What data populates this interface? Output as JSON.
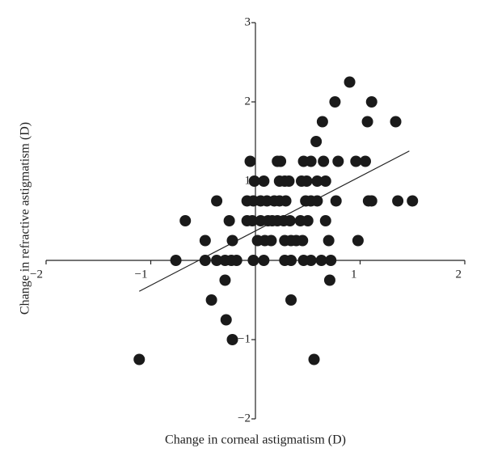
{
  "chart_data": {
    "type": "scatter",
    "x_label": "Change in corneal astigmatism (D)",
    "y_label": "Change in refractive astigmatism (D)",
    "x": [
      0.9,
      0.76,
      1.11,
      0.64,
      1.07,
      1.34,
      0.58,
      -0.05,
      0.21,
      0.24,
      0.46,
      0.53,
      0.65,
      0.79,
      0.96,
      1.05,
      -0.01,
      0.08,
      0.23,
      0.28,
      0.32,
      0.44,
      0.49,
      0.59,
      0.67,
      -0.37,
      -0.08,
      -0.02,
      0.05,
      0.11,
      0.18,
      0.23,
      0.29,
      0.48,
      0.53,
      0.59,
      0.77,
      1.08,
      1.11,
      1.36,
      1.5,
      -0.67,
      -0.25,
      -0.08,
      -0.03,
      0.05,
      0.12,
      0.16,
      0.21,
      0.27,
      0.33,
      0.43,
      0.5,
      0.67,
      -0.48,
      -0.22,
      0.02,
      0.09,
      0.15,
      0.28,
      0.34,
      0.39,
      0.45,
      0.7,
      0.98,
      -0.76,
      -0.48,
      -0.37,
      -0.29,
      -0.23,
      -0.18,
      -0.02,
      0.08,
      0.28,
      0.34,
      0.46,
      0.53,
      0.63,
      0.72,
      -0.29,
      0.71,
      -0.42,
      0.34,
      -0.28,
      -0.22,
      -1.11,
      0.56
    ],
    "y": [
      2.25,
      2,
      2,
      1.75,
      1.75,
      1.75,
      1.5,
      1.25,
      1.25,
      1.25,
      1.25,
      1.25,
      1.25,
      1.25,
      1.25,
      1.25,
      1,
      1,
      1,
      1,
      1,
      1,
      1,
      1,
      1,
      0.75,
      0.75,
      0.75,
      0.75,
      0.75,
      0.75,
      0.75,
      0.75,
      0.75,
      0.75,
      0.75,
      0.75,
      0.75,
      0.75,
      0.75,
      0.75,
      0.5,
      0.5,
      0.5,
      0.5,
      0.5,
      0.5,
      0.5,
      0.5,
      0.5,
      0.5,
      0.5,
      0.5,
      0.5,
      0.25,
      0.25,
      0.25,
      0.25,
      0.25,
      0.25,
      0.25,
      0.25,
      0.25,
      0.25,
      0.25,
      0,
      0,
      0,
      0,
      0,
      0,
      0,
      0,
      0,
      0,
      0,
      0,
      0,
      0,
      -0.25,
      -0.25,
      -0.5,
      -0.5,
      -0.75,
      -1,
      -1.25,
      -1.25
    ],
    "color": "#1a1a1a",
    "trendline": {
      "x": [
        -1.11,
        1.47
      ],
      "y": [
        -0.39,
        1.38
      ]
    },
    "xlim": [
      -2,
      2
    ],
    "ylim": [
      -2,
      3
    ],
    "xticks": [
      {
        "value": -2,
        "label": "−2"
      },
      {
        "value": -1,
        "label": "−1"
      },
      1,
      2
    ],
    "yticks": [
      {
        "value": -2,
        "label": "−2"
      },
      {
        "value": -1,
        "label": "−1"
      },
      1,
      2,
      3
    ]
  }
}
